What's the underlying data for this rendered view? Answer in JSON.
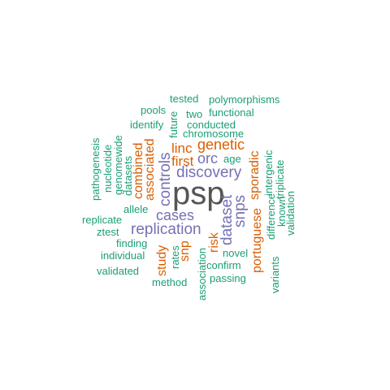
{
  "palette": {
    "teal": "#1b9e77",
    "orange": "#d95f02",
    "purple": "#7570b3",
    "gray": "#555555"
  },
  "words": [
    {
      "id": "psp",
      "text": "psp",
      "color": "#555555"
    },
    {
      "id": "replication",
      "text": "replication",
      "color": "#7570b3"
    },
    {
      "id": "discovery",
      "text": "discovery",
      "color": "#7570b3"
    },
    {
      "id": "cases",
      "text": "cases",
      "color": "#7570b3"
    },
    {
      "id": "controls",
      "text": "controls",
      "color": "#7570b3"
    },
    {
      "id": "dataset",
      "text": "dataset",
      "color": "#7570b3"
    },
    {
      "id": "snps",
      "text": "snps",
      "color": "#7570b3"
    },
    {
      "id": "orc",
      "text": "orc",
      "color": "#7570b3"
    },
    {
      "id": "genetic",
      "text": "genetic",
      "color": "#d95f02"
    },
    {
      "id": "linc",
      "text": "linc",
      "color": "#d95f02"
    },
    {
      "id": "first",
      "text": "first",
      "color": "#d95f02"
    },
    {
      "id": "combined",
      "text": "combined",
      "color": "#d95f02"
    },
    {
      "id": "associated",
      "text": "associated",
      "color": "#d95f02"
    },
    {
      "id": "sporadic",
      "text": "sporadic",
      "color": "#d95f02"
    },
    {
      "id": "portuguese",
      "text": "portuguese",
      "color": "#d95f02"
    },
    {
      "id": "risk",
      "text": "risk",
      "color": "#d95f02"
    },
    {
      "id": "study",
      "text": "study",
      "color": "#d95f02"
    },
    {
      "id": "snp",
      "text": "snp",
      "color": "#d95f02"
    },
    {
      "id": "tested",
      "text": "tested",
      "color": "#1b9e77"
    },
    {
      "id": "polymorphisms",
      "text": "polymorphisms",
      "color": "#1b9e77"
    },
    {
      "id": "pools",
      "text": "pools",
      "color": "#1b9e77"
    },
    {
      "id": "two",
      "text": "two",
      "color": "#1b9e77"
    },
    {
      "id": "functional",
      "text": "functional",
      "color": "#1b9e77"
    },
    {
      "id": "identify",
      "text": "identify",
      "color": "#1b9e77"
    },
    {
      "id": "conducted",
      "text": "conducted",
      "color": "#1b9e77"
    },
    {
      "id": "chromosome",
      "text": "chromosome",
      "color": "#1b9e77"
    },
    {
      "id": "future",
      "text": "future",
      "color": "#1b9e77"
    },
    {
      "id": "age",
      "text": "age",
      "color": "#1b9e77"
    },
    {
      "id": "pathogenesis",
      "text": "pathogenesis",
      "color": "#1b9e77"
    },
    {
      "id": "nucleotide",
      "text": "nucleotide",
      "color": "#1b9e77"
    },
    {
      "id": "genomewide",
      "text": "genomewide",
      "color": "#1b9e77"
    },
    {
      "id": "datasets",
      "text": "datasets",
      "color": "#1b9e77"
    },
    {
      "id": "intergenic",
      "text": "intergenic",
      "color": "#1b9e77"
    },
    {
      "id": "triplicate",
      "text": "triplicate",
      "color": "#1b9e77"
    },
    {
      "id": "known",
      "text": "known",
      "color": "#1b9e77"
    },
    {
      "id": "difference",
      "text": "difference",
      "color": "#1b9e77"
    },
    {
      "id": "validation",
      "text": "validation",
      "color": "#1b9e77"
    },
    {
      "id": "allele",
      "text": "allele",
      "color": "#1b9e77"
    },
    {
      "id": "replicate",
      "text": "replicate",
      "color": "#1b9e77"
    },
    {
      "id": "ztest",
      "text": "ztest",
      "color": "#1b9e77"
    },
    {
      "id": "finding",
      "text": "finding",
      "color": "#1b9e77"
    },
    {
      "id": "individual",
      "text": "individual",
      "color": "#1b9e77"
    },
    {
      "id": "validated",
      "text": "validated",
      "color": "#1b9e77"
    },
    {
      "id": "rates",
      "text": "rates",
      "color": "#1b9e77"
    },
    {
      "id": "novel",
      "text": "novel",
      "color": "#1b9e77"
    },
    {
      "id": "confirm",
      "text": "confirm",
      "color": "#1b9e77"
    },
    {
      "id": "passing",
      "text": "passing",
      "color": "#1b9e77"
    },
    {
      "id": "method",
      "text": "method",
      "color": "#1b9e77"
    },
    {
      "id": "association",
      "text": "association",
      "color": "#1b9e77"
    },
    {
      "id": "variants",
      "text": "variants",
      "color": "#1b9e77"
    }
  ]
}
